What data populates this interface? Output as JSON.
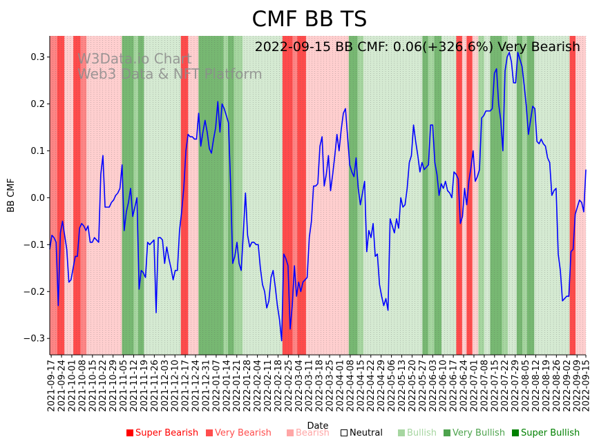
{
  "chart_data": {
    "type": "line",
    "title": "CMF BB TS",
    "subtitle": "2022-09-15 BB CMF: 0.06(+326.6%) Very Bearish",
    "watermark": [
      "W3Data.io Chart",
      "Web3 Data & NFT Platform"
    ],
    "xlabel": "Date",
    "ylabel": "BB CMF",
    "ylim": [
      -0.335,
      0.345
    ],
    "yticks": [
      -0.3,
      -0.2,
      -0.1,
      0.0,
      0.1,
      0.2,
      0.3
    ],
    "ytick_labels": [
      "−0.3",
      "−0.2",
      "−0.1",
      "0.0",
      "0.1",
      "0.2",
      "0.3"
    ],
    "x_start": "2021-09-16",
    "x_end": "2022-09-15",
    "xtick_labels": [
      "2021-09-17",
      "2021-09-24",
      "2021-10-01",
      "2021-10-08",
      "2021-10-15",
      "2021-10-22",
      "2021-10-29",
      "2021-11-05",
      "2021-11-12",
      "2021-11-19",
      "2021-11-26",
      "2021-12-03",
      "2021-12-10",
      "2021-12-17",
      "2021-12-24",
      "2021-12-31",
      "2022-01-07",
      "2022-01-14",
      "2022-01-21",
      "2022-01-28",
      "2022-02-04",
      "2022-02-11",
      "2022-02-18",
      "2022-02-25",
      "2022-03-04",
      "2022-03-11",
      "2022-03-18",
      "2022-03-25",
      "2022-04-01",
      "2022-04-08",
      "2022-04-15",
      "2022-04-22",
      "2022-04-29",
      "2022-05-06",
      "2022-05-13",
      "2022-05-20",
      "2022-05-27",
      "2022-06-03",
      "2022-06-10",
      "2022-06-17",
      "2022-06-24",
      "2022-07-01",
      "2022-07-08",
      "2022-07-15",
      "2022-07-22",
      "2022-07-29",
      "2022-08-05",
      "2022-08-12",
      "2022-08-19",
      "2022-08-26",
      "2022-09-02",
      "2022-09-09",
      "2022-09-15"
    ],
    "series": [
      {
        "name": "BB CMF",
        "color": "#0000ff",
        "values": [
          -0.11,
          -0.08,
          -0.085,
          -0.095,
          -0.23,
          -0.075,
          -0.05,
          -0.08,
          -0.11,
          -0.18,
          -0.175,
          -0.15,
          -0.125,
          -0.125,
          -0.065,
          -0.055,
          -0.06,
          -0.07,
          -0.06,
          -0.095,
          -0.095,
          -0.085,
          -0.09,
          -0.095,
          0.05,
          0.09,
          -0.02,
          -0.02,
          -0.02,
          -0.01,
          -0.005,
          0.005,
          0.01,
          0.02,
          0.07,
          -0.07,
          -0.03,
          -0.01,
          0.02,
          -0.04,
          -0.02,
          0.0,
          -0.195,
          -0.155,
          -0.16,
          -0.17,
          -0.095,
          -0.1,
          -0.095,
          -0.09,
          -0.245,
          -0.085,
          -0.085,
          -0.09,
          -0.14,
          -0.105,
          -0.13,
          -0.15,
          -0.175,
          -0.155,
          -0.155,
          -0.07,
          -0.03,
          0.02,
          0.1,
          0.135,
          0.13,
          0.13,
          0.125,
          0.125,
          0.18,
          0.11,
          0.14,
          0.165,
          0.14,
          0.105,
          0.095,
          0.125,
          0.15,
          0.205,
          0.14,
          0.2,
          0.19,
          0.175,
          0.16,
          0.03,
          -0.14,
          -0.125,
          -0.095,
          -0.14,
          -0.155,
          -0.075,
          0.01,
          -0.08,
          -0.105,
          -0.095,
          -0.095,
          -0.1,
          -0.1,
          -0.15,
          -0.185,
          -0.2,
          -0.235,
          -0.22,
          -0.17,
          -0.155,
          -0.19,
          -0.23,
          -0.26,
          -0.305,
          -0.12,
          -0.13,
          -0.145,
          -0.28,
          -0.23,
          -0.145,
          -0.21,
          -0.18,
          -0.2,
          -0.18,
          -0.175,
          -0.17,
          -0.085,
          -0.05,
          0.025,
          0.025,
          0.03,
          0.11,
          0.13,
          0.025,
          0.05,
          0.09,
          0.015,
          0.05,
          0.09,
          0.135,
          0.1,
          0.145,
          0.18,
          0.19,
          0.13,
          0.07,
          0.055,
          0.045,
          0.085,
          0.02,
          -0.015,
          0.01,
          0.035,
          -0.115,
          -0.07,
          -0.085,
          -0.055,
          -0.125,
          -0.12,
          -0.185,
          -0.21,
          -0.23,
          -0.215,
          -0.24,
          -0.045,
          -0.06,
          -0.075,
          -0.045,
          -0.065,
          0.0,
          -0.02,
          -0.015,
          0.02,
          0.075,
          0.09,
          0.155,
          0.12,
          0.09,
          0.055,
          0.075,
          0.06,
          0.065,
          0.07,
          0.155,
          0.155,
          0.075,
          0.05,
          0.005,
          0.03,
          0.02,
          0.035,
          0.015,
          0.01,
          0.0,
          0.055,
          0.05,
          0.04,
          -0.055,
          -0.04,
          0.02,
          -0.015,
          0.035,
          0.065,
          0.1,
          0.035,
          0.045,
          0.06,
          0.17,
          0.175,
          0.185,
          0.185,
          0.185,
          0.19,
          0.265,
          0.275,
          0.2,
          0.165,
          0.1,
          0.27,
          0.3,
          0.31,
          0.29,
          0.245,
          0.245,
          0.31,
          0.295,
          0.28,
          0.24,
          0.195,
          0.135,
          0.165,
          0.195,
          0.19,
          0.12,
          0.115,
          0.125,
          0.115,
          0.11,
          0.085,
          0.075,
          0.005,
          0.015,
          0.02,
          -0.12,
          -0.155,
          -0.22,
          -0.215,
          -0.21,
          -0.21,
          -0.115,
          -0.11,
          -0.035,
          -0.02,
          -0.005,
          -0.01,
          -0.03,
          0.06
        ]
      }
    ],
    "regime_colors": {
      "super_bearish": "#ff4b4b",
      "very_bearish": "#ff8585",
      "bearish": "#ffcfcf",
      "neutral": "#ffffff",
      "bullish": "#d5ead2",
      "very_bullish": "#a6d6a0",
      "super_bullish": "#77b872"
    },
    "regime_periods": [
      {
        "start": "2021-09-16",
        "end": "2021-09-21",
        "regime": "very_bearish"
      },
      {
        "start": "2021-09-21",
        "end": "2021-09-26",
        "regime": "super_bearish"
      },
      {
        "start": "2021-09-26",
        "end": "2021-10-02",
        "regime": "bearish"
      },
      {
        "start": "2021-10-02",
        "end": "2021-10-07",
        "regime": "super_bearish"
      },
      {
        "start": "2021-10-07",
        "end": "2021-10-11",
        "regime": "very_bearish"
      },
      {
        "start": "2021-10-11",
        "end": "2021-11-04",
        "regime": "bearish"
      },
      {
        "start": "2021-11-04",
        "end": "2021-11-12",
        "regime": "super_bullish"
      },
      {
        "start": "2021-11-12",
        "end": "2021-11-15",
        "regime": "very_bullish"
      },
      {
        "start": "2021-11-15",
        "end": "2021-11-19",
        "regime": "super_bullish"
      },
      {
        "start": "2021-11-19",
        "end": "2021-12-14",
        "regime": "bullish"
      },
      {
        "start": "2021-12-14",
        "end": "2021-12-19",
        "regime": "super_bearish"
      },
      {
        "start": "2021-12-19",
        "end": "2021-12-26",
        "regime": "bearish"
      },
      {
        "start": "2021-12-26",
        "end": "2022-01-12",
        "regime": "super_bullish"
      },
      {
        "start": "2022-01-12",
        "end": "2022-01-15",
        "regime": "very_bullish"
      },
      {
        "start": "2022-01-15",
        "end": "2022-01-19",
        "regime": "super_bullish"
      },
      {
        "start": "2022-01-19",
        "end": "2022-01-25",
        "regime": "very_bullish"
      },
      {
        "start": "2022-01-25",
        "end": "2022-02-21",
        "regime": "bullish"
      },
      {
        "start": "2022-02-21",
        "end": "2022-02-28",
        "regime": "super_bearish"
      },
      {
        "start": "2022-02-28",
        "end": "2022-03-03",
        "regime": "very_bearish"
      },
      {
        "start": "2022-03-03",
        "end": "2022-03-09",
        "regime": "super_bearish"
      },
      {
        "start": "2022-03-09",
        "end": "2022-04-07",
        "regime": "bearish"
      },
      {
        "start": "2022-04-07",
        "end": "2022-04-13",
        "regime": "super_bullish"
      },
      {
        "start": "2022-04-13",
        "end": "2022-04-17",
        "regime": "very_bullish"
      },
      {
        "start": "2022-04-17",
        "end": "2022-05-27",
        "regime": "bullish"
      },
      {
        "start": "2022-05-27",
        "end": "2022-05-31",
        "regime": "super_bullish"
      },
      {
        "start": "2022-05-31",
        "end": "2022-06-04",
        "regime": "very_bullish"
      },
      {
        "start": "2022-06-04",
        "end": "2022-06-09",
        "regime": "super_bullish"
      },
      {
        "start": "2022-06-09",
        "end": "2022-06-19",
        "regime": "bullish"
      },
      {
        "start": "2022-06-19",
        "end": "2022-06-23",
        "regime": "super_bearish"
      },
      {
        "start": "2022-06-23",
        "end": "2022-06-26",
        "regime": "bearish"
      },
      {
        "start": "2022-06-26",
        "end": "2022-06-30",
        "regime": "super_bearish"
      },
      {
        "start": "2022-06-30",
        "end": "2022-07-04",
        "regime": "bearish"
      },
      {
        "start": "2022-07-04",
        "end": "2022-07-08",
        "regime": "very_bullish"
      },
      {
        "start": "2022-07-08",
        "end": "2022-07-12",
        "regime": "bullish"
      },
      {
        "start": "2022-07-12",
        "end": "2022-07-20",
        "regime": "super_bullish"
      },
      {
        "start": "2022-07-20",
        "end": "2022-07-24",
        "regime": "very_bullish"
      },
      {
        "start": "2022-07-24",
        "end": "2022-07-30",
        "regime": "bullish"
      },
      {
        "start": "2022-07-30",
        "end": "2022-08-03",
        "regime": "super_bullish"
      },
      {
        "start": "2022-08-03",
        "end": "2022-08-06",
        "regime": "very_bullish"
      },
      {
        "start": "2022-08-06",
        "end": "2022-08-11",
        "regime": "super_bullish"
      },
      {
        "start": "2022-08-11",
        "end": "2022-09-04",
        "regime": "bullish"
      },
      {
        "start": "2022-09-04",
        "end": "2022-09-08",
        "regime": "super_bearish"
      },
      {
        "start": "2022-09-08",
        "end": "2022-09-15",
        "regime": "bearish"
      }
    ],
    "legend_placement": "bottom-right",
    "legend": [
      {
        "label": "Super Bearish",
        "color": "#ff0000",
        "text_color": "#ff0000"
      },
      {
        "label": "Very Bearish",
        "color": "#ff4d4d",
        "text_color": "#ff4d4d"
      },
      {
        "label": "Bearish",
        "color": "#ffa6a6",
        "text_color": "#ffa6a6"
      },
      {
        "label": "Neutral",
        "color": "#ffffff",
        "text_color": "#000000"
      },
      {
        "label": "Bullish",
        "color": "#a6d6a0",
        "text_color": "#a6d6a0"
      },
      {
        "label": "Very Bullish",
        "color": "#4da34d",
        "text_color": "#4da34d"
      },
      {
        "label": "Super Bullish",
        "color": "#008000",
        "text_color": "#008000"
      }
    ]
  }
}
